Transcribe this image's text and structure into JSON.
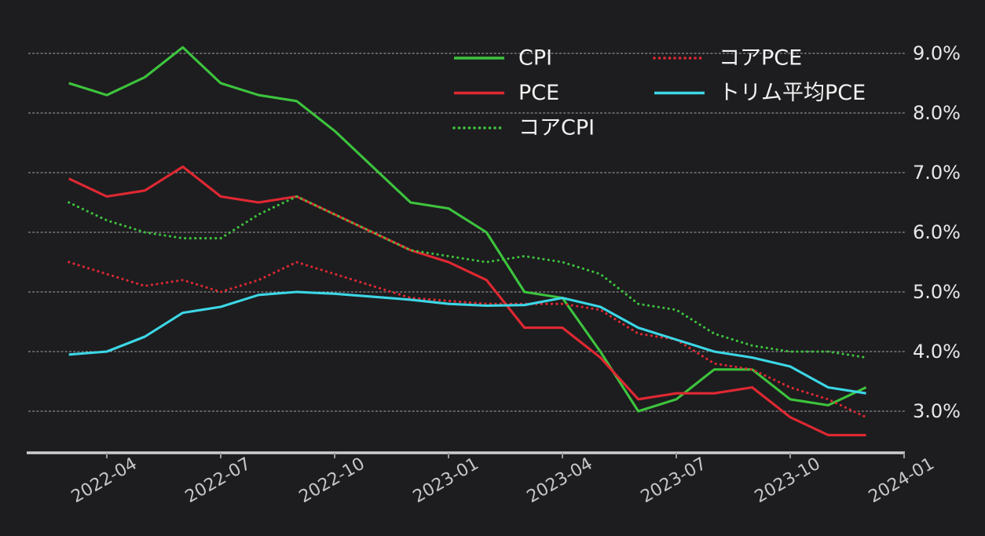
{
  "chart": {
    "background_color": "#1d1d1f",
    "grid_color": "#d2d2d4",
    "axis_color": "#cdcdcf",
    "y_tick_labels": [
      "9.0%",
      "8.0%",
      "7.0%",
      "6.0%",
      "5.0%",
      "4.0%",
      "3.0%"
    ],
    "x_tick_labels": [
      "2022-04",
      "2022-07",
      "2022-10",
      "2023-01",
      "2023-04",
      "2023-07",
      "2023-10",
      "2024-01"
    ]
  },
  "chart_data": {
    "type": "line",
    "title": "",
    "xlabel": "",
    "ylabel": "",
    "x": [
      "2022-03",
      "2022-04",
      "2022-05",
      "2022-06",
      "2022-07",
      "2022-08",
      "2022-09",
      "2022-10",
      "2022-11",
      "2022-12",
      "2023-01",
      "2023-02",
      "2023-03",
      "2023-04",
      "2023-05",
      "2023-06",
      "2023-07",
      "2023-08",
      "2023-09",
      "2023-10",
      "2023-11",
      "2023-12"
    ],
    "y_unit": "%",
    "ylim": [
      2.3,
      9.9
    ],
    "y_tick_values": [
      9.0,
      8.0,
      7.0,
      6.0,
      5.0,
      4.0,
      3.0
    ],
    "grid": "horizontal-dashed",
    "legend_position": "top-center",
    "series": [
      {
        "name": "CPI",
        "color": "#3dc43d",
        "line_style": "solid",
        "values": [
          8.5,
          8.3,
          8.6,
          9.1,
          8.5,
          8.3,
          8.2,
          7.7,
          7.1,
          6.5,
          6.4,
          6.0,
          5.0,
          4.9,
          4.0,
          3.0,
          3.2,
          3.7,
          3.7,
          3.2,
          3.1,
          3.4
        ]
      },
      {
        "name": "PCE",
        "color": "#e02832",
        "line_style": "solid",
        "values": [
          6.9,
          6.6,
          6.7,
          7.1,
          6.6,
          6.5,
          6.6,
          6.3,
          6.0,
          5.7,
          5.5,
          5.2,
          4.4,
          4.4,
          3.9,
          3.2,
          3.3,
          3.3,
          3.4,
          2.9,
          2.6,
          2.6
        ]
      },
      {
        "name": "コアCPI",
        "color": "#3dc43d",
        "line_style": "dotted",
        "values": [
          6.5,
          6.2,
          6.0,
          5.9,
          5.9,
          6.3,
          6.6,
          6.3,
          6.0,
          5.7,
          5.6,
          5.5,
          5.6,
          5.5,
          5.3,
          4.8,
          4.7,
          4.3,
          4.1,
          4.0,
          4.0,
          3.9
        ]
      },
      {
        "name": "コアPCE",
        "color": "#e02832",
        "line_style": "dotted",
        "values": [
          5.5,
          5.3,
          5.1,
          5.2,
          5.0,
          5.2,
          5.5,
          5.3,
          5.1,
          4.9,
          4.85,
          4.8,
          4.8,
          4.8,
          4.7,
          4.3,
          4.2,
          3.8,
          3.7,
          3.4,
          3.2,
          2.9
        ]
      },
      {
        "name": "トリム平均PCE",
        "color": "#3cd7e6",
        "line_style": "solid",
        "values": [
          3.95,
          4.0,
          4.25,
          4.65,
          4.75,
          4.95,
          5.0,
          4.97,
          4.92,
          4.87,
          4.8,
          4.77,
          4.78,
          4.9,
          4.75,
          4.4,
          4.2,
          4.0,
          3.9,
          3.75,
          3.4,
          3.3
        ]
      }
    ]
  }
}
